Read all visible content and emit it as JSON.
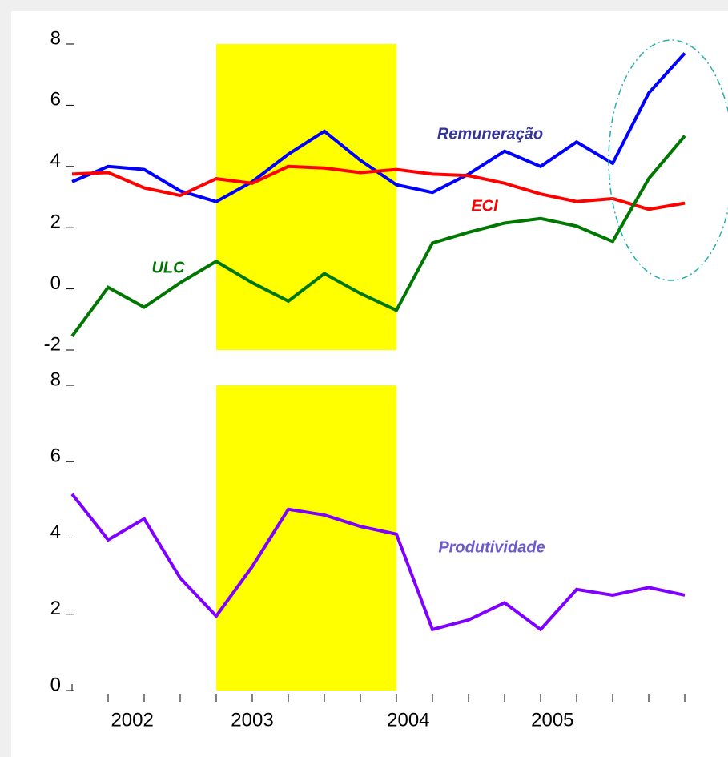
{
  "chart_data": [
    {
      "type": "line",
      "xlim": [
        0,
        17
      ],
      "ylim": [
        -2,
        8
      ],
      "yticks": [
        -2,
        0,
        2,
        4,
        6,
        8
      ],
      "shaded": [
        4,
        9
      ],
      "shade_color": "#ffff00",
      "series": [
        {
          "name": "Remuneração",
          "color": "#0000ff",
          "label_color": "#333399",
          "values": [
            3.5,
            4.0,
            3.9,
            3.2,
            2.85,
            3.5,
            4.4,
            5.15,
            4.2,
            3.4,
            3.15,
            3.75,
            4.5,
            4.0,
            4.8,
            4.1,
            6.4,
            7.7
          ]
        },
        {
          "name": "ECI",
          "color": "#ff0000",
          "label_color": "#ff0000",
          "values": [
            3.75,
            3.8,
            3.3,
            3.05,
            3.6,
            3.45,
            4.0,
            3.95,
            3.8,
            3.9,
            3.75,
            3.7,
            3.45,
            3.1,
            2.85,
            2.95,
            2.6,
            2.8
          ]
        },
        {
          "name": "ULC",
          "color": "#007700",
          "label_color": "#007700",
          "values": [
            -1.55,
            0.05,
            -0.6,
            0.2,
            0.9,
            0.2,
            -0.4,
            0.5,
            -0.15,
            -0.7,
            1.5,
            1.85,
            2.15,
            2.3,
            2.05,
            1.55,
            3.6,
            5.0
          ]
        }
      ]
    },
    {
      "type": "line",
      "xlim": [
        0,
        17
      ],
      "ylim": [
        0,
        8
      ],
      "yticks": [
        0,
        2,
        4,
        6,
        8
      ],
      "shaded": [
        4,
        9
      ],
      "shade_color": "#ffff00",
      "xticks": [
        1,
        2,
        3,
        4,
        5,
        6,
        7,
        8,
        9,
        10,
        11,
        12,
        13,
        14,
        15,
        16,
        17
      ],
      "xlabels": [
        {
          "value": 1.67,
          "label": "2002"
        },
        {
          "value": 5,
          "label": "2003"
        },
        {
          "value": 9.33,
          "label": "2004"
        },
        {
          "value": 13.33,
          "label": "2005"
        }
      ],
      "series": [
        {
          "name": "Produtividade",
          "color": "#8000ff",
          "label_color": "#6a5acd",
          "values": [
            5.15,
            3.95,
            4.5,
            2.95,
            1.95,
            3.25,
            4.75,
            4.6,
            4.3,
            4.1,
            1.6,
            1.85,
            2.3,
            1.6,
            2.65,
            2.5,
            2.7,
            2.5
          ]
        }
      ]
    }
  ]
}
